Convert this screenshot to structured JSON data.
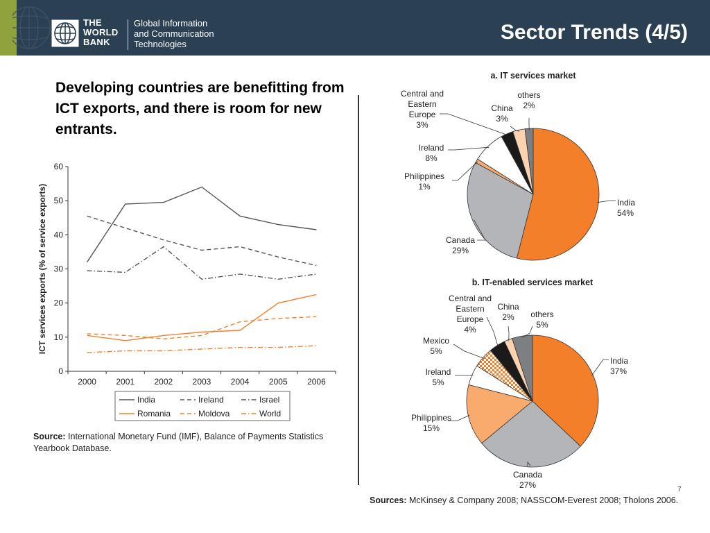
{
  "header": {
    "org_name_lines": [
      "THE",
      "WORLD",
      "BANK"
    ],
    "unit_lines": [
      "Global Information",
      "and Communication",
      "Technologies"
    ],
    "title": "Sector Trends (4/5)"
  },
  "subtitle": "Developing countries are benefitting from ICT exports, and there is room for new entrants.",
  "colors": {
    "header_bg": "#2b4052",
    "accent_green": "#8fa23e",
    "orange": "#f47f2a",
    "light_orange": "#f9ab6e",
    "gray": "#b3b5b8",
    "black": "#1a1a1a"
  },
  "left_source": {
    "label": "Source:",
    "text": " International Monetary Fund (IMF), Balance of Payments Statistics Yearbook Database."
  },
  "right_source": {
    "label": "Sources:",
    "text": " McKinsey & Company 2008; NASSCOM-Everest 2008; Tholons 2006."
  },
  "slide_number": "7",
  "chart_data": [
    {
      "type": "line",
      "ylabel": "ICT services exports (% of service exports)",
      "x": [
        "2000",
        "2001",
        "2002",
        "2003",
        "2004",
        "2005",
        "2006"
      ],
      "ylim": [
        0,
        60
      ],
      "yticks": [
        0,
        10,
        20,
        30,
        40,
        50,
        60
      ],
      "legend_position": "bottom",
      "series": [
        {
          "name": "India",
          "color": "#555555",
          "dash": "solid",
          "values": [
            32,
            49,
            49.5,
            54,
            45.5,
            43,
            41.5
          ]
        },
        {
          "name": "Ireland",
          "color": "#555555",
          "dash": "dashed",
          "values": [
            45.5,
            42,
            38.5,
            35.5,
            36.5,
            33.5,
            31
          ]
        },
        {
          "name": "Israel",
          "color": "#555555",
          "dash": "dashdot",
          "values": [
            29.5,
            29,
            36.5,
            27,
            28.5,
            27,
            28.5
          ]
        },
        {
          "name": "Romania",
          "color": "#f47f2a",
          "dash": "solid",
          "values": [
            10.5,
            9,
            10.5,
            11.5,
            12,
            20,
            22.5
          ]
        },
        {
          "name": "Moldova",
          "color": "#f47f2a",
          "dash": "dashed",
          "values": [
            11,
            10.5,
            9.5,
            10.5,
            14.5,
            15.5,
            16
          ]
        },
        {
          "name": "World",
          "color": "#f47f2a",
          "dash": "dashdot",
          "values": [
            5.5,
            6,
            6,
            6.5,
            7,
            7,
            7.5
          ]
        }
      ]
    },
    {
      "type": "pie",
      "title": "a. IT services market",
      "slices": [
        {
          "name": "India",
          "value": 54,
          "color": "#f47f2a",
          "pattern": "none"
        },
        {
          "name": "Canada",
          "value": 29,
          "color": "#b3b5b8",
          "pattern": "none"
        },
        {
          "name": "Philippines",
          "value": 1,
          "color": "#f9ab6e",
          "pattern": "none"
        },
        {
          "name": "Ireland",
          "value": 8,
          "color": "#ffffff",
          "pattern": "none"
        },
        {
          "name": "Central and Eastern Europe",
          "value": 3,
          "color": "#1a1a1a",
          "pattern": "none"
        },
        {
          "name": "China",
          "value": 3,
          "color": "#fbd3b0",
          "pattern": "none"
        },
        {
          "name": "others",
          "value": 2,
          "color": "#7d7f82",
          "pattern": "none"
        }
      ],
      "labels": [
        {
          "lines": [
            "India",
            "54%"
          ]
        },
        {
          "lines": [
            "Canada",
            "29%"
          ]
        },
        {
          "lines": [
            "Philippines",
            "1%"
          ]
        },
        {
          "lines": [
            "Ireland",
            "8%"
          ]
        },
        {
          "lines": [
            "Central and",
            "Eastern",
            "Europe",
            "3%"
          ]
        },
        {
          "lines": [
            "China",
            "3%"
          ]
        },
        {
          "lines": [
            "others",
            "2%"
          ]
        }
      ]
    },
    {
      "type": "pie",
      "title": "b. IT-enabled services market",
      "slices": [
        {
          "name": "India",
          "value": 37,
          "color": "#f47f2a",
          "pattern": "none"
        },
        {
          "name": "Canada",
          "value": 27,
          "color": "#b3b5b8",
          "pattern": "none"
        },
        {
          "name": "Philippines",
          "value": 15,
          "color": "#f9ab6e",
          "pattern": "none"
        },
        {
          "name": "Ireland",
          "value": 5,
          "color": "#ffffff",
          "pattern": "none"
        },
        {
          "name": "Mexico",
          "value": 5,
          "color": "#f47f2a",
          "pattern": "checker"
        },
        {
          "name": "Central and Eastern Europe",
          "value": 4,
          "color": "#1a1a1a",
          "pattern": "none"
        },
        {
          "name": "China",
          "value": 2,
          "color": "#fbd3b0",
          "pattern": "none"
        },
        {
          "name": "others",
          "value": 5,
          "color": "#7d7f82",
          "pattern": "none"
        }
      ],
      "labels": [
        {
          "lines": [
            "India",
            "37%"
          ]
        },
        {
          "lines": [
            "Canada",
            "27%"
          ]
        },
        {
          "lines": [
            "Philippines",
            "15%"
          ]
        },
        {
          "lines": [
            "Ireland",
            "5%"
          ]
        },
        {
          "lines": [
            "Mexico",
            "5%"
          ]
        },
        {
          "lines": [
            "Central and",
            "Eastern",
            "Europe",
            "4%"
          ]
        },
        {
          "lines": [
            "China",
            "2%"
          ]
        },
        {
          "lines": [
            "others",
            "5%"
          ]
        }
      ]
    }
  ]
}
